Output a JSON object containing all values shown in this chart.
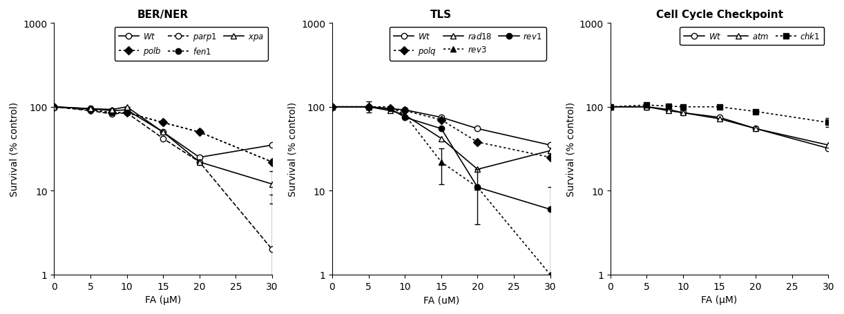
{
  "panel1": {
    "title": "BER/NER",
    "xlabel": "FA (μM)",
    "ylabel": "Survival (% control)",
    "series": {
      "Wt": {
        "x": [
          0,
          5,
          8,
          10,
          15,
          20,
          30
        ],
        "y": [
          100,
          95,
          90,
          92,
          50,
          25,
          35
        ],
        "yerr": [
          0,
          0,
          0,
          0,
          0,
          0,
          0
        ],
        "marker": "o",
        "markerfill": "white",
        "linestyle": "-",
        "color": "black",
        "label": "Wt"
      },
      "polb": {
        "x": [
          0,
          5,
          8,
          10,
          15,
          20,
          30
        ],
        "y": [
          100,
          92,
          85,
          85,
          65,
          50,
          22
        ],
        "yerr": [
          0,
          0,
          0,
          0,
          0,
          0,
          0
        ],
        "marker": "D",
        "markerfill": "black",
        "linestyle": "dotted",
        "color": "black",
        "label": "polb"
      },
      "parp1": {
        "x": [
          0,
          5,
          8,
          10,
          15,
          20,
          30
        ],
        "y": [
          100,
          90,
          82,
          85,
          42,
          22,
          2
        ],
        "yerr": [
          0,
          0,
          0,
          0,
          0,
          0,
          7
        ],
        "marker": "o",
        "markerfill": "white",
        "linestyle": "--",
        "color": "black",
        "label": "parp1"
      },
      "fen1": {
        "x": [
          0,
          5,
          8,
          10,
          15,
          20,
          30
        ],
        "y": [
          100,
          92,
          85,
          85,
          65,
          50,
          22
        ],
        "yerr": [
          0,
          0,
          0,
          0,
          0,
          0,
          0
        ],
        "marker": "o",
        "markerfill": "black",
        "linestyle": "dotted",
        "color": "black",
        "label": "fen1"
      },
      "xpa": {
        "x": [
          0,
          5,
          8,
          10,
          15,
          20,
          30
        ],
        "y": [
          100,
          95,
          93,
          100,
          50,
          22,
          12
        ],
        "yerr": [
          0,
          0,
          0,
          0,
          0,
          0,
          5
        ],
        "marker": "^",
        "markerfill": "white",
        "linestyle": "-",
        "color": "black",
        "label": "xpa"
      }
    },
    "ylim": [
      1,
      1000
    ],
    "xlim": [
      0,
      30
    ]
  },
  "panel2": {
    "title": "TLS",
    "xlabel": "FA (uM)",
    "ylabel": "Survival (% control)",
    "series": {
      "Wt": {
        "x": [
          0,
          5,
          8,
          10,
          15,
          20,
          30
        ],
        "y": [
          100,
          100,
          95,
          92,
          75,
          55,
          35
        ],
        "yerr": [
          0,
          0,
          0,
          0,
          0,
          0,
          0
        ],
        "marker": "o",
        "markerfill": "white",
        "linestyle": "-",
        "color": "black",
        "label": "Wt"
      },
      "polq": {
        "x": [
          0,
          5,
          8,
          10,
          15,
          20,
          30
        ],
        "y": [
          100,
          100,
          95,
          90,
          70,
          38,
          25
        ],
        "yerr": [
          0,
          0,
          0,
          0,
          0,
          0,
          0
        ],
        "marker": "D",
        "markerfill": "black",
        "linestyle": "dotted",
        "color": "black",
        "label": "polq"
      },
      "rad18": {
        "x": [
          0,
          5,
          8,
          10,
          15,
          20,
          30
        ],
        "y": [
          100,
          100,
          90,
          80,
          42,
          18,
          30
        ],
        "yerr": [
          0,
          0,
          0,
          0,
          0,
          0,
          0
        ],
        "marker": "^",
        "markerfill": "white",
        "linestyle": "-",
        "color": "black",
        "label": "rad18"
      },
      "rev3": {
        "x": [
          0,
          5,
          8,
          10,
          15,
          20,
          30
        ],
        "y": [
          100,
          100,
          100,
          80,
          22,
          11,
          1
        ],
        "yerr": [
          0,
          15,
          0,
          0,
          10,
          7,
          0
        ],
        "marker": "^",
        "markerfill": "black",
        "linestyle": "dotted",
        "color": "black",
        "label": "rev3"
      },
      "rev1": {
        "x": [
          0,
          5,
          8,
          10,
          15,
          20,
          30
        ],
        "y": [
          100,
          100,
          95,
          75,
          55,
          11,
          6
        ],
        "yerr": [
          0,
          0,
          0,
          0,
          0,
          0,
          5
        ],
        "marker": "o",
        "markerfill": "black",
        "linestyle": "-",
        "color": "black",
        "label": "rev1"
      }
    },
    "ylim": [
      1,
      1000
    ],
    "xlim": [
      0,
      30
    ]
  },
  "panel3": {
    "title": "Cell Cycle Checkpoint",
    "xlabel": "FA (μM)",
    "ylabel": "Survival (% control)",
    "series": {
      "Wt": {
        "x": [
          0,
          5,
          8,
          10,
          15,
          20,
          30
        ],
        "y": [
          100,
          100,
          93,
          85,
          75,
          55,
          32
        ],
        "yerr": [
          0,
          0,
          0,
          0,
          0,
          0,
          0
        ],
        "marker": "o",
        "markerfill": "white",
        "linestyle": "-",
        "color": "black",
        "label": "Wt"
      },
      "atm": {
        "x": [
          0,
          5,
          8,
          10,
          15,
          20,
          30
        ],
        "y": [
          100,
          100,
          90,
          85,
          72,
          55,
          35
        ],
        "yerr": [
          0,
          0,
          0,
          0,
          0,
          0,
          0
        ],
        "marker": "^",
        "markerfill": "white",
        "linestyle": "-",
        "color": "black",
        "label": "atm"
      },
      "chk1": {
        "x": [
          0,
          5,
          8,
          10,
          15,
          20,
          30
        ],
        "y": [
          100,
          105,
          102,
          100,
          100,
          88,
          65
        ],
        "yerr": [
          0,
          0,
          0,
          0,
          0,
          0,
          8
        ],
        "marker": "s",
        "markerfill": "black",
        "linestyle": "dotted",
        "color": "black",
        "label": "chk1"
      }
    },
    "ylim": [
      1,
      1000
    ],
    "xlim": [
      0,
      30
    ]
  }
}
